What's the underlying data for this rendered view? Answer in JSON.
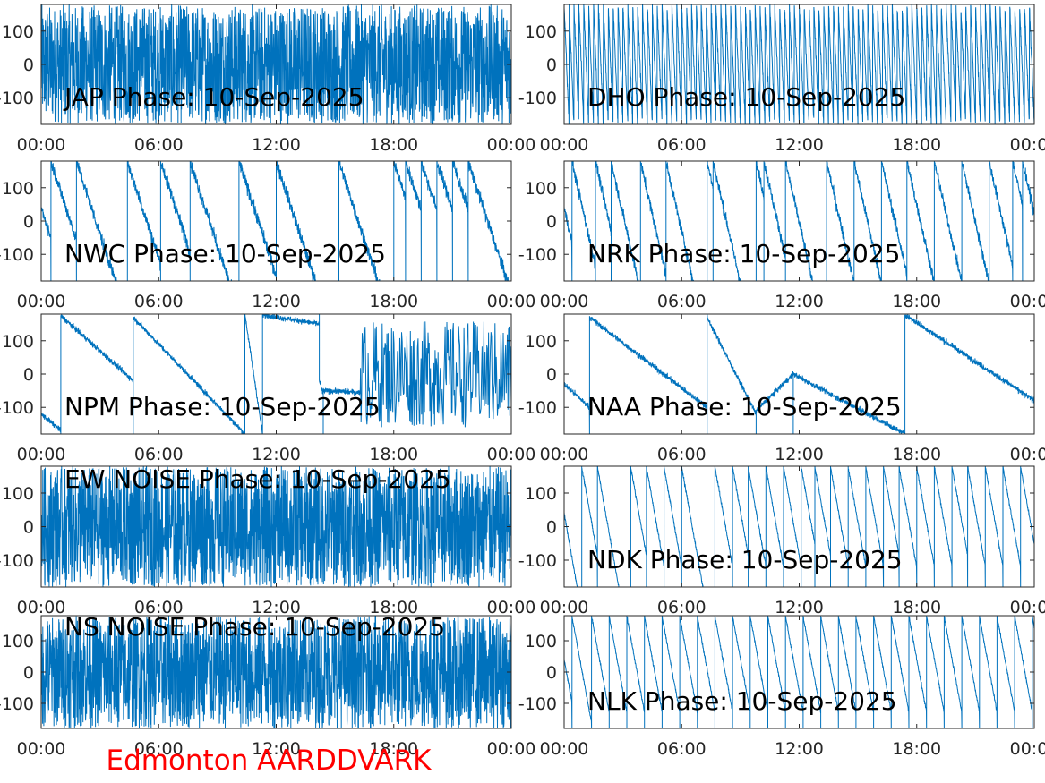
{
  "figure": {
    "footer_text": "Edmonton AARDDVARK",
    "footer_color": "#ff0000",
    "line_color": "#0072bd"
  },
  "chart_data": [
    {
      "type": "line",
      "title": "JAP Phase: 10-Sep-2025",
      "ylim": [
        -180,
        180
      ],
      "yticks": [
        "100",
        "0",
        "-100"
      ],
      "xticks": [
        "00:00",
        "06:00",
        "12:00",
        "18:00",
        "00:00"
      ],
      "pattern": "dense-noise",
      "x_hours": [
        0,
        24
      ],
      "note_gaps_hours": [
        1.5,
        3.9,
        20.2,
        22.5
      ]
    },
    {
      "type": "line",
      "title": "DHO Phase: 10-Sep-2025",
      "ylim": [
        -180,
        180
      ],
      "yticks": [
        "100",
        "0",
        "-100"
      ],
      "xticks": [
        "00:00",
        "06:00",
        "12:00",
        "18:00",
        "00:00"
      ],
      "pattern": "fast-sawtooth",
      "x_hours": [
        0,
        24
      ],
      "wrap_period_hours": 0.25
    },
    {
      "type": "line",
      "title": "NWC Phase: 10-Sep-2025",
      "ylim": [
        -180,
        180
      ],
      "yticks": [
        "100",
        "0",
        "-100"
      ],
      "xticks": [
        "00:00",
        "06:00",
        "12:00",
        "18:00",
        "00:00"
      ],
      "pattern": "sawtooth",
      "x_hours": [
        0,
        24
      ],
      "wraps_hours": [
        0.5,
        1.8,
        4.4,
        6.1,
        7.6,
        10.1,
        12.0,
        15.2,
        18.0,
        18.6,
        19.4,
        20.2,
        21.0,
        21.8
      ],
      "slope_deg_per_hour": -180,
      "noise_deg": 14
    },
    {
      "type": "line",
      "title": "NRK Phase: 10-Sep-2025",
      "ylim": [
        -180,
        180
      ],
      "yticks": [
        "100",
        "0",
        "-100"
      ],
      "xticks": [
        "00:00",
        "06:00",
        "12:00",
        "18:00",
        "00:00"
      ],
      "pattern": "sawtooth",
      "x_hours": [
        0,
        24
      ],
      "wraps_hours": [
        0.4,
        1.6,
        2.4,
        3.9,
        5.2,
        7.3,
        7.6,
        9.8,
        10.2,
        11.3,
        13.4,
        14.8,
        16.2,
        17.5,
        18.9,
        20.3,
        21.7,
        22.9,
        23.4
      ],
      "slope_deg_per_hour": -260,
      "noise_deg": 12
    },
    {
      "type": "line",
      "title": "NPM Phase: 10-Sep-2025",
      "ylim": [
        -180,
        180
      ],
      "yticks": [
        "100",
        "0",
        "-100"
      ],
      "xticks": [
        "00:00",
        "06:00",
        "12:00",
        "18:00",
        "00:00"
      ],
      "pattern": "segments",
      "x_hours": [
        0,
        24
      ],
      "segments": [
        {
          "x": [
            0.0,
            1.0
          ],
          "y": [
            -120,
            -170
          ]
        },
        {
          "x": [
            1.0,
            4.7
          ],
          "y": [
            175,
            -20
          ]
        },
        {
          "x": [
            4.7,
            10.4
          ],
          "y": [
            170,
            -180
          ]
        },
        {
          "x": [
            10.4,
            11.3
          ],
          "y": [
            180,
            -180
          ]
        },
        {
          "x": [
            11.3,
            14.2
          ],
          "y": [
            178,
            150
          ]
        },
        {
          "x": [
            14.2,
            14.4
          ],
          "y": [
            -20,
            -60
          ]
        },
        {
          "x": [
            14.4,
            16.3
          ],
          "y": [
            -50,
            -55
          ]
        }
      ],
      "noise_region_hours": [
        16.3,
        24
      ],
      "noise_deg": 160
    },
    {
      "type": "line",
      "title": "NAA Phase: 10-Sep-2025",
      "ylim": [
        -180,
        180
      ],
      "yticks": [
        "100",
        "0",
        "-100"
      ],
      "xticks": [
        "00:00",
        "06:00",
        "12:00",
        "18:00",
        "00:00"
      ],
      "pattern": "segments",
      "x_hours": [
        0,
        24
      ],
      "segments": [
        {
          "x": [
            0.0,
            1.3
          ],
          "y": [
            -30,
            -100
          ]
        },
        {
          "x": [
            1.3,
            7.3
          ],
          "y": [
            170,
            -100
          ]
        },
        {
          "x": [
            7.3,
            9.8
          ],
          "y": [
            170,
            -120
          ]
        },
        {
          "x": [
            9.8,
            11.7
          ],
          "y": [
            -110,
            0
          ]
        },
        {
          "x": [
            11.7,
            17.4
          ],
          "y": [
            0,
            -180
          ]
        },
        {
          "x": [
            17.4,
            24.0
          ],
          "y": [
            178,
            -80
          ]
        }
      ]
    },
    {
      "type": "line",
      "title": "EW NOISE Phase: 10-Sep-2025",
      "ylim": [
        -180,
        180
      ],
      "yticks": [
        "100",
        "0",
        "-100"
      ],
      "xticks": [
        "00:00",
        "06:00",
        "12:00",
        "18:00",
        "00:00"
      ],
      "pattern": "dense-noise",
      "x_hours": [
        0,
        24
      ]
    },
    {
      "type": "line",
      "title": "NDK Phase: 10-Sep-2025",
      "ylim": [
        -180,
        180
      ],
      "yticks": [
        "100",
        "0",
        "-100"
      ],
      "xticks": [
        "00:00",
        "06:00",
        "12:00",
        "18:00",
        "00:00"
      ],
      "pattern": "sawtooth",
      "x_hours": [
        0,
        24
      ],
      "wraps_hours": [
        0.9,
        1.7,
        3.4,
        4.2,
        5.1,
        6.0,
        7.7,
        8.6,
        9.4,
        10.3,
        11.2,
        12.1,
        12.8,
        13.6,
        14.5,
        15.4,
        16.3,
        17.1,
        18.0,
        18.9,
        19.8,
        20.6,
        21.5,
        22.4,
        23.3
      ],
      "slope_deg_per_hour": -330,
      "noise_deg": 4
    },
    {
      "type": "line",
      "title": "NS NOISE Phase: 10-Sep-2025",
      "ylim": [
        -180,
        180
      ],
      "yticks": [
        "100",
        "0",
        "-100"
      ],
      "xticks": [
        "00:00",
        "06:00",
        "12:00",
        "18:00",
        "00:00"
      ],
      "pattern": "dense-noise",
      "x_hours": [
        0,
        24
      ]
    },
    {
      "type": "line",
      "title": "NLK Phase: 10-Sep-2025",
      "ylim": [
        -180,
        180
      ],
      "yticks": [
        "100",
        "0",
        "-100"
      ],
      "xticks": [
        "00:00",
        "06:00",
        "12:00",
        "18:00",
        "00:00"
      ],
      "pattern": "sawtooth",
      "x_hours": [
        0,
        24
      ],
      "wraps_hours": [
        0.4,
        1.4,
        2.3,
        3.2,
        4.1,
        5.0,
        5.9,
        6.8,
        7.7,
        8.6,
        9.5,
        10.4,
        11.3,
        12.2,
        13.1,
        14.0,
        14.9,
        15.8,
        16.7,
        17.6,
        18.5,
        19.4,
        20.3,
        21.2,
        22.1,
        23.0,
        23.9
      ],
      "slope_deg_per_hour": -340,
      "noise_deg": 4
    }
  ]
}
